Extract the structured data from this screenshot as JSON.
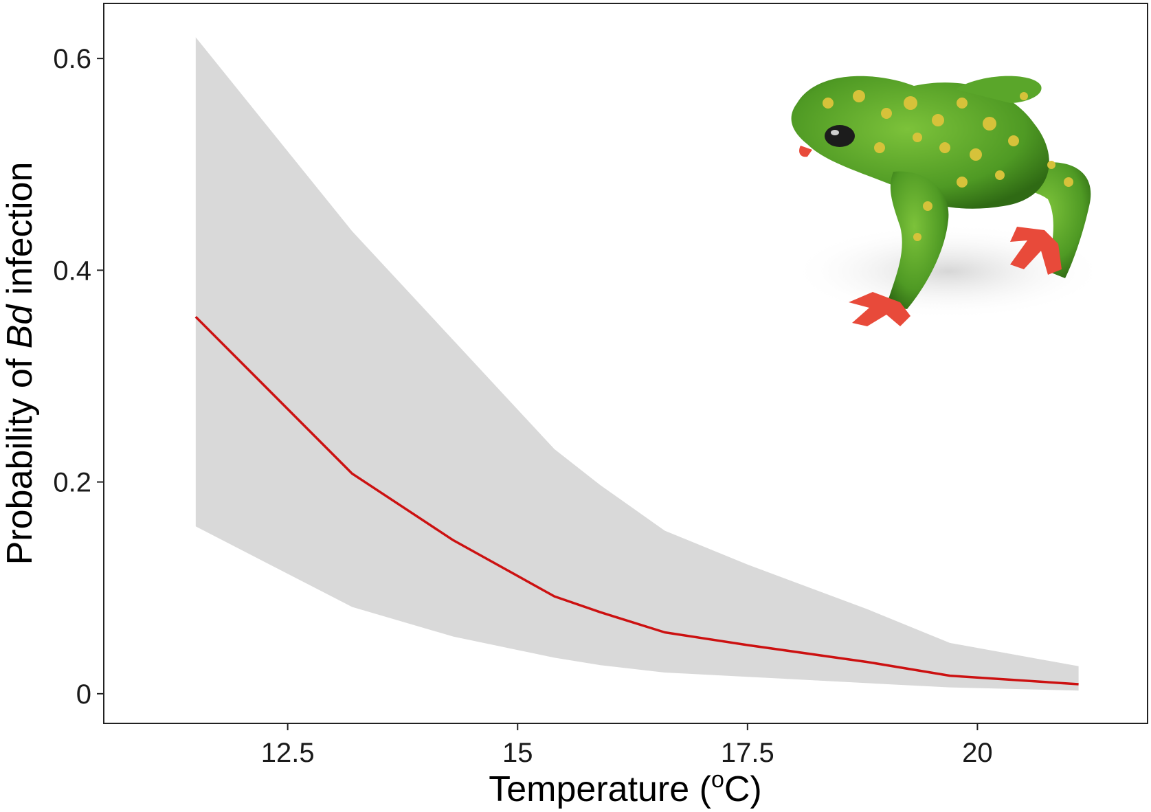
{
  "chart_data": {
    "type": "line",
    "xlabel": {
      "pre": "Temperature (",
      "sup": "o",
      "post": "C)"
    },
    "ylabel": {
      "pre": "Probability of ",
      "italic": "Bd",
      "post": " infection"
    },
    "xlim": [
      10.5,
      21.85
    ],
    "ylim": [
      -0.028,
      0.652
    ],
    "x_ticks": [
      12.5,
      15,
      17.5,
      20
    ],
    "x_tick_labels": [
      "12.5",
      "15",
      "17.5",
      "20"
    ],
    "y_ticks": [
      0,
      0.2,
      0.4,
      0.6
    ],
    "y_tick_labels": [
      "0",
      "0.2",
      "0.4",
      "0.6"
    ],
    "grid": false,
    "series": [
      {
        "x": [
          11.5,
          13.2,
          14.3,
          15.4,
          15.9,
          16.6,
          17.5,
          18.8,
          19.7,
          21.1
        ],
        "y": [
          0.356,
          0.208,
          0.145,
          0.092,
          0.077,
          0.058,
          0.046,
          0.03,
          0.017,
          0.009
        ],
        "lower": [
          0.158,
          0.082,
          0.054,
          0.034,
          0.027,
          0.02,
          0.016,
          0.01,
          0.006,
          0.003
        ],
        "upper": [
          0.62,
          0.437,
          0.334,
          0.231,
          0.197,
          0.154,
          0.122,
          0.08,
          0.048,
          0.026
        ],
        "color": "#cc1111",
        "band_color": "#d9d9d9"
      }
    ],
    "inset_image": "green-toad-with-yellow-spots"
  }
}
